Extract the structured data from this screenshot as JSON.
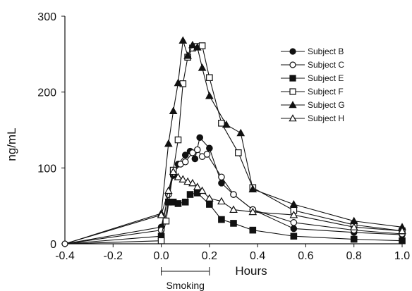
{
  "chart_data": {
    "type": "line",
    "title": "",
    "xlabel": "Hours",
    "ylabel": "ng/mL",
    "xlim": [
      -0.4,
      1.0
    ],
    "ylim": [
      0,
      300
    ],
    "x_ticks": [
      -0.4,
      -0.2,
      0.0,
      0.2,
      0.4,
      0.6,
      0.8,
      1.0
    ],
    "x_tick_labels": [
      "-0.4",
      "-0.2",
      "0.0",
      "0.2",
      "0.4",
      "0.6",
      "0.8",
      "1.0"
    ],
    "y_ticks": [
      0,
      100,
      200,
      300
    ],
    "y_tick_labels": [
      "0",
      "100",
      "200",
      "300"
    ],
    "grid": false,
    "legend_position": "top-right",
    "annotation": {
      "text": "Smoking",
      "x_start": 0.0,
      "x_end": 0.2
    },
    "series": [
      {
        "name": "Subject B",
        "marker": "circle-filled",
        "x": [
          -0.4,
          0.0,
          0.03,
          0.05,
          0.07,
          0.1,
          0.12,
          0.14,
          0.16,
          0.2,
          0.25,
          0.3,
          0.38,
          0.55,
          0.8,
          1.0
        ],
        "y": [
          0,
          22,
          65,
          90,
          105,
          117,
          122,
          112,
          140,
          126,
          80,
          65,
          45,
          20,
          15,
          12
        ]
      },
      {
        "name": "Subject C",
        "marker": "circle-open",
        "x": [
          -0.4,
          0.0,
          0.03,
          0.05,
          0.08,
          0.1,
          0.13,
          0.15,
          0.17,
          0.19,
          0.25,
          0.3,
          0.38,
          0.55,
          0.8,
          1.0
        ],
        "y": [
          0,
          18,
          65,
          93,
          105,
          108,
          120,
          124,
          115,
          118,
          88,
          65,
          45,
          28,
          18,
          13
        ]
      },
      {
        "name": "Subject E",
        "marker": "square-filled",
        "x": [
          -0.4,
          0.0,
          0.03,
          0.05,
          0.07,
          0.1,
          0.12,
          0.15,
          0.2,
          0.25,
          0.3,
          0.38,
          0.55,
          0.8,
          1.0
        ],
        "y": [
          0,
          10,
          55,
          55,
          53,
          55,
          65,
          67,
          52,
          32,
          27,
          18,
          10,
          6,
          4
        ]
      },
      {
        "name": "Subject F",
        "marker": "square-open",
        "x": [
          -0.4,
          0.0,
          0.02,
          0.05,
          0.07,
          0.09,
          0.11,
          0.13,
          0.15,
          0.17,
          0.2,
          0.25,
          0.32,
          0.38,
          0.55,
          0.8,
          1.0
        ],
        "y": [
          0,
          4,
          30,
          97,
          137,
          211,
          246,
          258,
          260,
          261,
          219,
          159,
          120,
          74,
          44,
          25,
          17
        ]
      },
      {
        "name": "Subject G",
        "marker": "triangle-filled",
        "x": [
          -0.4,
          0.0,
          0.03,
          0.05,
          0.07,
          0.09,
          0.11,
          0.13,
          0.15,
          0.17,
          0.2,
          0.27,
          0.33,
          0.38,
          0.55,
          0.8,
          1.0
        ],
        "y": [
          0,
          40,
          132,
          175,
          212,
          268,
          248,
          262,
          259,
          232,
          195,
          157,
          146,
          72,
          52,
          30,
          22
        ]
      },
      {
        "name": "Subject H",
        "marker": "triangle-open",
        "x": [
          -0.4,
          0.0,
          0.03,
          0.05,
          0.07,
          0.09,
          0.11,
          0.13,
          0.15,
          0.17,
          0.2,
          0.25,
          0.3,
          0.38,
          0.55,
          0.8,
          1.0
        ],
        "y": [
          0,
          38,
          70,
          95,
          88,
          85,
          82,
          80,
          75,
          70,
          60,
          56,
          45,
          42,
          38,
          22,
          17
        ]
      }
    ]
  }
}
